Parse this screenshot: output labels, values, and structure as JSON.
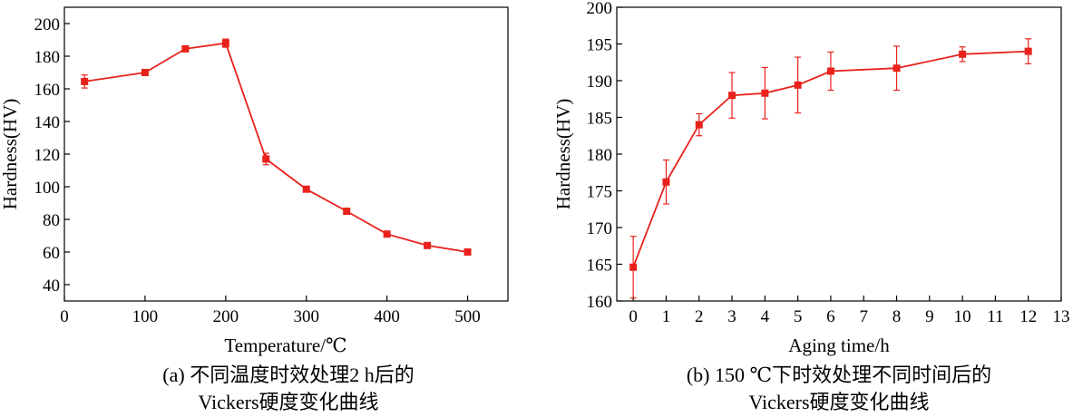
{
  "colors": {
    "series": "#e8221b",
    "axis": "#000000",
    "background": "#ffffff"
  },
  "chart_data": [
    {
      "id": "a",
      "type": "line",
      "title": "",
      "xlabel": "Temperature/℃",
      "ylabel": "Hardness(HV)",
      "xlim": [
        0,
        550
      ],
      "ylim": [
        30,
        210
      ],
      "xticks": [
        0,
        100,
        200,
        300,
        400,
        500
      ],
      "yticks": [
        40,
        60,
        80,
        100,
        120,
        140,
        160,
        180,
        200
      ],
      "series": [
        {
          "x": [
            25,
            100,
            150,
            200,
            250,
            300,
            350,
            400,
            450,
            500
          ],
          "y": [
            164.5,
            170,
            184.5,
            188,
            117,
            98.5,
            85,
            71,
            64,
            60
          ],
          "err": [
            4,
            0.5,
            1,
            2.5,
            3.5,
            0.5,
            0.5,
            0.5,
            0.5,
            0.5
          ]
        }
      ],
      "caption": [
        "(a) 不同温度时效处理2 h后的",
        "Vickers硬度变化曲线"
      ]
    },
    {
      "id": "b",
      "type": "line",
      "title": "",
      "xlabel": "Aging time/h",
      "ylabel": "Hardness(HV)",
      "xlim": [
        -0.5,
        13
      ],
      "ylim": [
        160,
        200
      ],
      "xticks": [
        0,
        1,
        2,
        3,
        4,
        5,
        6,
        7,
        8,
        9,
        10,
        11,
        12,
        13
      ],
      "yticks": [
        160,
        165,
        170,
        175,
        180,
        185,
        190,
        195,
        200
      ],
      "series": [
        {
          "x": [
            0,
            1,
            2,
            3,
            4,
            5,
            6,
            8,
            10,
            12
          ],
          "y": [
            164.6,
            176.2,
            184.0,
            188.0,
            188.3,
            189.4,
            191.3,
            191.7,
            193.6,
            194.0
          ],
          "err": [
            4.2,
            3.0,
            1.5,
            3.1,
            3.5,
            3.8,
            2.6,
            3.0,
            1.0,
            1.7
          ]
        }
      ],
      "caption": [
        "(b) 150 ℃下时效处理不同时间后的",
        "Vickers硬度变化曲线"
      ]
    }
  ]
}
